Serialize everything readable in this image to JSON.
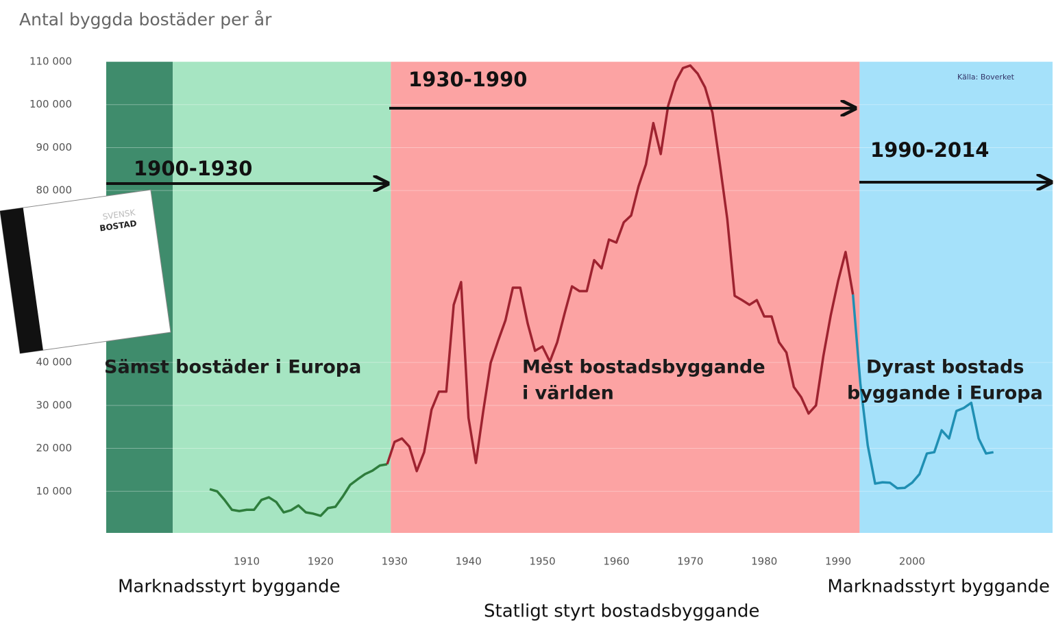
{
  "chart_data": {
    "type": "line",
    "title": "Antal byggda bostäder per år",
    "source": "Källa: Boverket",
    "xlim": [
      1891,
      2019
    ],
    "ylim": [
      0,
      110000
    ],
    "xticks": [
      1910,
      1920,
      1930,
      1940,
      1950,
      1960,
      1970,
      1980,
      1990,
      2000
    ],
    "yticks": [
      {
        "value": 10000,
        "label": "10 000"
      },
      {
        "value": 20000,
        "label": "20 000"
      },
      {
        "value": 30000,
        "label": "30 000"
      },
      {
        "value": 40000,
        "label": "40 000"
      },
      {
        "value": 80000,
        "label": "80 000"
      },
      {
        "value": 90000,
        "label": "90 000"
      },
      {
        "value": 100000,
        "label": "100 000"
      },
      {
        "value": 110000,
        "label": "110 000"
      }
    ],
    "bands": [
      {
        "from": 1891,
        "to": 1900,
        "color": "#3f8c6c"
      },
      {
        "from": 1900,
        "to": 1929.5,
        "color": "#a6e5c2"
      },
      {
        "from": 1929.5,
        "to": 1992.9,
        "color": "#fca3a3"
      },
      {
        "from": 1992.9,
        "to": 2019,
        "color": "#a5e1fa"
      }
    ],
    "periods": [
      "1900-1930",
      "1930-1990",
      "1990-2014"
    ],
    "descriptions": [
      "Sämst bostäder i Europa",
      "Mest bostadsbyggande",
      "i världen",
      "Dyrast bostads",
      "byggande i Europa"
    ],
    "bottom_labels": [
      "Marknadsstyrt byggande",
      "Marknadsstyrt byggande",
      "Statligt styrt bostadsbyggande"
    ],
    "book": [
      "SVENSK",
      "BOSTAD"
    ],
    "x": [
      1905,
      1906,
      1907,
      1908,
      1909,
      1910,
      1911,
      1912,
      1913,
      1914,
      1915,
      1916,
      1917,
      1918,
      1919,
      1920,
      1921,
      1922,
      1923,
      1924,
      1925,
      1926,
      1927,
      1928,
      1929,
      1930,
      1931,
      1932,
      1933,
      1934,
      1935,
      1936,
      1937,
      1938,
      1939,
      1940,
      1941,
      1942,
      1943,
      1944,
      1945,
      1946,
      1947,
      1948,
      1949,
      1950,
      1951,
      1952,
      1953,
      1954,
      1955,
      1956,
      1957,
      1958,
      1959,
      1960,
      1961,
      1962,
      1963,
      1964,
      1965,
      1966,
      1967,
      1968,
      1969,
      1970,
      1971,
      1972,
      1973,
      1974,
      1975,
      1976,
      1977,
      1978,
      1979,
      1980,
      1981,
      1982,
      1983,
      1984,
      1985,
      1986,
      1987,
      1988,
      1989,
      1990,
      1991,
      1992,
      1993,
      1994,
      1995,
      1996,
      1997,
      1998,
      1999,
      2000,
      2001,
      2002,
      2003,
      2004,
      2005,
      2006,
      2007,
      2008,
      2009,
      2010,
      2011
    ],
    "series": [
      {
        "color": "#2e7d3c",
        "values": [
          10500,
          10000,
          8000,
          5700,
          5400,
          5700,
          5700,
          8000,
          8600,
          7500,
          5100,
          5600,
          6700,
          5100,
          4800,
          4300,
          6100,
          6400,
          8800,
          11500,
          12800,
          14000,
          14800,
          16000,
          16300,
          null,
          null,
          null,
          null,
          null,
          null,
          null,
          null,
          null,
          null,
          null,
          null,
          null,
          null,
          null,
          null,
          null,
          null,
          null,
          null,
          null,
          null,
          null,
          null,
          null,
          null,
          null,
          null,
          null,
          null,
          null,
          null,
          null,
          null,
          null,
          null,
          null,
          null,
          null,
          null,
          null,
          null,
          null,
          null,
          null,
          null,
          null,
          null,
          null,
          null,
          null,
          null,
          null,
          null,
          null,
          null,
          null,
          null,
          null,
          null,
          null,
          null,
          null,
          null,
          null,
          null,
          null,
          null,
          null,
          null,
          null,
          null,
          null,
          null,
          null,
          null,
          null,
          null,
          null,
          null,
          null,
          null
        ]
      },
      {
        "color": "#9e2330",
        "values": [
          null,
          null,
          null,
          null,
          null,
          null,
          null,
          null,
          null,
          null,
          null,
          null,
          null,
          null,
          null,
          null,
          null,
          null,
          null,
          null,
          null,
          null,
          null,
          null,
          16300,
          21500,
          22300,
          20400,
          14700,
          19100,
          29000,
          33200,
          33200,
          53400,
          58700,
          27100,
          16600,
          28700,
          39900,
          45000,
          49800,
          57400,
          57400,
          49100,
          42700,
          43700,
          40200,
          44700,
          51400,
          57700,
          56600,
          56600,
          63800,
          61900,
          68600,
          67900,
          72600,
          74200,
          81000,
          86100,
          95700,
          88500,
          99700,
          105300,
          108500,
          109100,
          107200,
          104000,
          98100,
          86100,
          73400,
          55500,
          54500,
          53400,
          54500,
          50700,
          50700,
          44700,
          42300,
          34300,
          31900,
          28100,
          30000,
          41500,
          51000,
          59000,
          65700,
          55800,
          null,
          null,
          null,
          null,
          null,
          null,
          null,
          null,
          null,
          null,
          null,
          null,
          null,
          null,
          null,
          null,
          null,
          null,
          null
        ]
      },
      {
        "color": "#1f8fb3",
        "values": [
          null,
          null,
          null,
          null,
          null,
          null,
          null,
          null,
          null,
          null,
          null,
          null,
          null,
          null,
          null,
          null,
          null,
          null,
          null,
          null,
          null,
          null,
          null,
          null,
          null,
          null,
          null,
          null,
          null,
          null,
          null,
          null,
          null,
          null,
          null,
          null,
          null,
          null,
          null,
          null,
          null,
          null,
          null,
          null,
          null,
          null,
          null,
          null,
          null,
          null,
          null,
          null,
          null,
          null,
          null,
          null,
          null,
          null,
          null,
          null,
          null,
          null,
          null,
          null,
          null,
          null,
          null,
          null,
          null,
          null,
          null,
          null,
          null,
          null,
          null,
          null,
          null,
          null,
          null,
          null,
          null,
          null,
          null,
          null,
          null,
          null,
          null,
          55800,
          35100,
          20700,
          11800,
          12100,
          12000,
          10700,
          10800,
          12000,
          14000,
          18800,
          19100,
          24200,
          22300,
          28700,
          29400,
          30600,
          22300,
          18800,
          19100
        ]
      }
    ]
  }
}
